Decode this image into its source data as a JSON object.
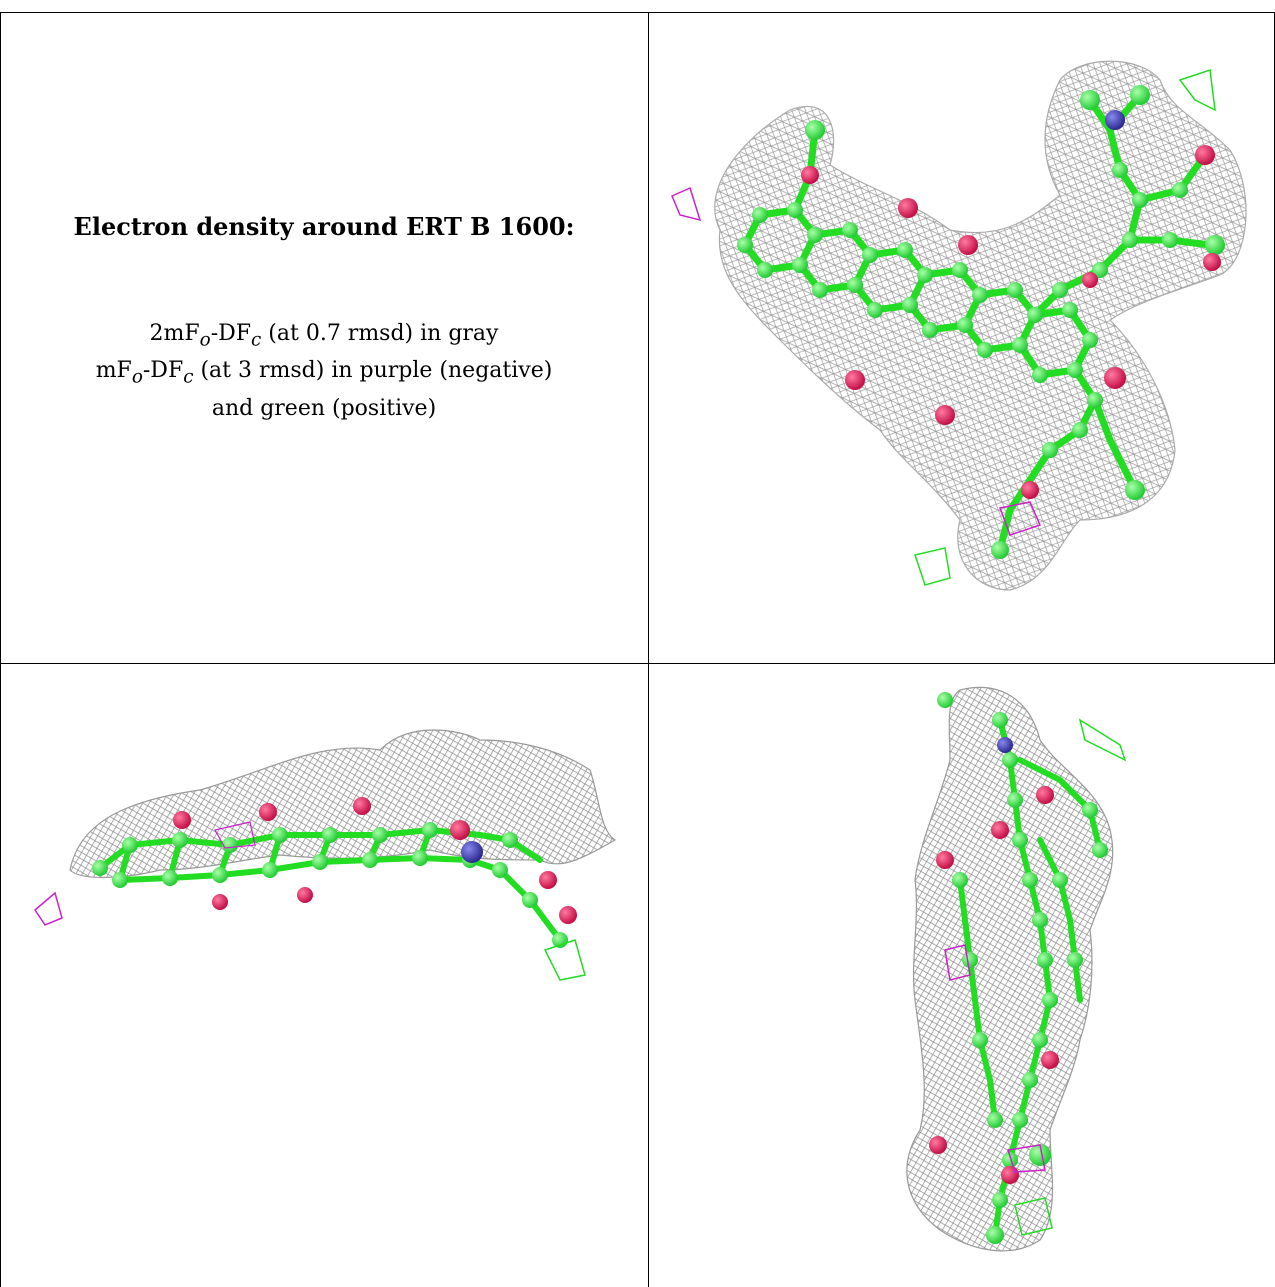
{
  "caption": {
    "title": "Electron density around ERT B 1600:",
    "line1": "2mFo-DFc (at 0.7 rmsd) in gray",
    "line2": "mFo-DFc (at 3 rmsd) in purple (negative)",
    "line3": "and green (positive)"
  },
  "colors": {
    "mesh_2fofc": "#9a9a9a",
    "mesh_negative": "#cc22cc",
    "mesh_positive": "#22dd22",
    "carbon": "#33ee44",
    "oxygen": "#e8195a",
    "nitrogen": "#3a3aaa"
  },
  "panels": [
    {
      "name": "view-top-right"
    },
    {
      "name": "view-bottom-left"
    },
    {
      "name": "view-bottom-right"
    }
  ]
}
